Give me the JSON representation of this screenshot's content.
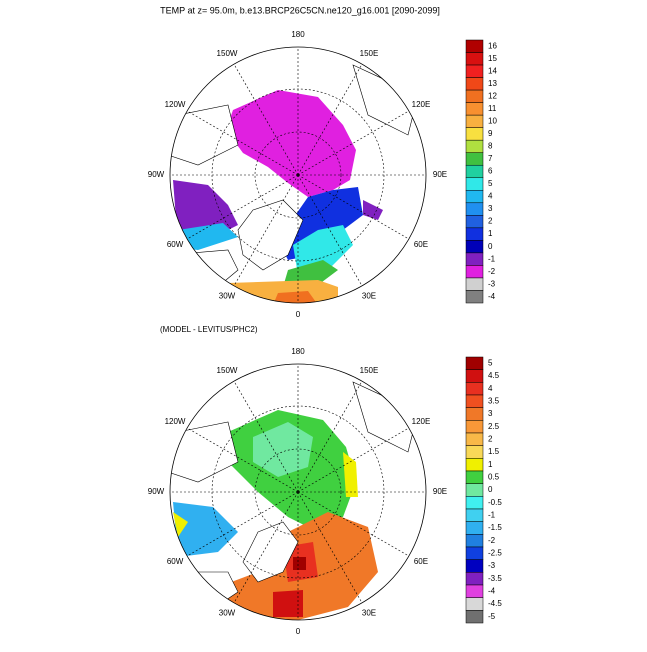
{
  "title": "TEMP at z=  95.0m, b.e13.BRCP26C5CN.ne120_g16.001 [2090-2099]",
  "maps": [
    {
      "subtitle": null,
      "lon_labels": [
        "0",
        "30E",
        "60E",
        "90E",
        "120E",
        "150E",
        "180",
        "150W",
        "120W",
        "90W",
        "60W",
        "30W"
      ],
      "colorbar": {
        "labels": [
          "16",
          "15",
          "14",
          "13",
          "12",
          "11",
          "10",
          "9",
          "8",
          "7",
          "6",
          "5",
          "4",
          "3",
          "2",
          "1",
          "0",
          "-1",
          "-2",
          "-3",
          "-4"
        ],
        "colors": [
          "#b00000",
          "#d81010",
          "#f02020",
          "#f04818",
          "#f07020",
          "#f89030",
          "#f8b040",
          "#f8e040",
          "#b0e040",
          "#40c040",
          "#20d0a0",
          "#30e8e8",
          "#20b8f0",
          "#2090f0",
          "#2060e0",
          "#1030e0",
          "#0000b8",
          "#8020c0",
          "#e020e0",
          "#d0d0d0",
          "#808080"
        ]
      }
    },
    {
      "subtitle": "(MODEL - LEVITUS/PHC2)",
      "lon_labels": [
        "0",
        "30E",
        "60E",
        "90E",
        "120E",
        "150E",
        "180",
        "150W",
        "120W",
        "90W",
        "60W",
        "30W"
      ],
      "colorbar": {
        "labels": [
          "5",
          "4.5",
          "4",
          "3.5",
          "3",
          "2.5",
          "2",
          "1.5",
          "1",
          "0.5",
          "0",
          "-0.5",
          "-1",
          "-1.5",
          "-2",
          "-2.5",
          "-3",
          "-3.5",
          "-4",
          "-4.5",
          "-5"
        ],
        "colors": [
          "#a00000",
          "#d01010",
          "#e83020",
          "#f05020",
          "#f07828",
          "#f89838",
          "#f8b848",
          "#f8d858",
          "#f0f000",
          "#40d040",
          "#70e8a0",
          "#40f0f0",
          "#40d0f0",
          "#30b0f0",
          "#2080e0",
          "#1040e0",
          "#0000c0",
          "#8020c0",
          "#e040e0",
          "#d8d8d8",
          "#707070"
        ]
      }
    }
  ]
}
